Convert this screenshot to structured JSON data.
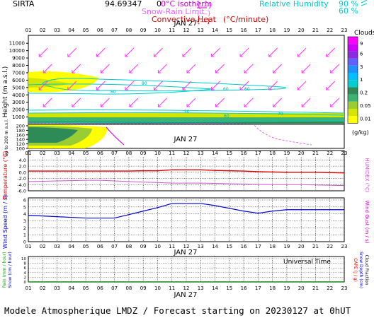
{
  "header": {
    "site": "SIRTA",
    "coords": "94.69347",
    "o_symbol": "0",
    "iso_label": "0°C isotherm",
    "snow_label": "Snow-Rain Limit",
    "conv_label": "Convective Heat",
    "conv_unit": "(°C/minute)",
    "rh_label": "Relative Humidity",
    "rh_90": "90 %",
    "rh_60": "60 %"
  },
  "date_label": "JAN 27",
  "hours": [
    "01",
    "02",
    "03",
    "04",
    "05",
    "06",
    "07",
    "08",
    "09",
    "10",
    "11",
    "12",
    "13",
    "14",
    "15",
    "16",
    "17",
    "18",
    "19",
    "20",
    "21",
    "22",
    "23"
  ],
  "cloud_panel": {
    "ylabel": "Height (m a.s.l.)",
    "ylabel2": "Up to 200 m a.s.l.",
    "yticks_upper": [
      "1000",
      "2000",
      "3000",
      "4000",
      "5000",
      "6000",
      "7000",
      "8000",
      "9000",
      "10000",
      "11000"
    ],
    "yticks_lower": [
      "100",
      "120",
      "140",
      "160",
      "180",
      "200"
    ],
    "contour_labels": [
      "60",
      "80",
      "60",
      "60",
      "50",
      "60",
      "70"
    ]
  },
  "cloud_legend": {
    "title": "Clouds",
    "levels": [
      "9",
      "6",
      "3",
      "1",
      "0.2",
      "0.05",
      "0.01"
    ],
    "unit": "(g/kg)",
    "colors": [
      "#ff00ff",
      "#cc00ff",
      "#8a2be2",
      "#6060ff",
      "#1e90ff",
      "#00bfff",
      "#00ced1",
      "#2e8b57",
      "#3cb371",
      "#9acd32",
      "#d4e600",
      "#ffff00"
    ]
  },
  "temp_panel": {
    "ylabel": "Temperature (°C)",
    "ylabel_right": "HUMIDEX (°C)",
    "yticks": [
      "4.0",
      "2.0",
      "0.0",
      "-2.0",
      "-4.0",
      "-6.0"
    ],
    "colors": {
      "temperature": "#dd0000",
      "humidex": "#cc55cc"
    }
  },
  "wind_panel": {
    "ylabel": "Wind Speed (m / s)",
    "ylabel_right": "Wind Gust (m / s)",
    "yticks": [
      "6",
      "5",
      "4",
      "3",
      "2",
      "1",
      "0"
    ],
    "color": "#0000cc"
  },
  "rain_panel": {
    "ylabel": "Rain (mm / hour)",
    "ylabel2": "Snow (cm / hour)",
    "ylabel_r1": "CAPE (J / g)",
    "ylabel_r2": "Snow Depth (cm)",
    "ylabel_r3": "Cloud Fraction",
    "yticks": [
      "10",
      "8",
      "6",
      "4",
      "2",
      "0"
    ],
    "xlabel": "Universal Time"
  },
  "footer": "Modele Atmospherique LMDZ / Forecast starting on 20230127 at 0hUT",
  "chart_data": [
    {
      "type": "heatmap",
      "title": "Clouds (g/kg) and Relative Humidity",
      "x": [
        "01",
        "02",
        "03",
        "04",
        "05",
        "06",
        "07",
        "08",
        "09",
        "10",
        "11",
        "12",
        "13",
        "14",
        "15",
        "16",
        "17",
        "18",
        "19",
        "20",
        "21",
        "22",
        "23"
      ],
      "ylabel": "Height (m a.s.l.)",
      "ylim": [
        0,
        11500
      ],
      "legend_levels": [
        9,
        6,
        3,
        1,
        0.2,
        0.05,
        0.01
      ]
    },
    {
      "type": "line",
      "ylabel": "Temperature (°C)",
      "ylim": [
        -6,
        5
      ],
      "x": [
        "01",
        "02",
        "03",
        "04",
        "05",
        "06",
        "07",
        "08",
        "09",
        "10",
        "11",
        "12",
        "13",
        "14",
        "15",
        "16",
        "17",
        "18",
        "19",
        "20",
        "21",
        "22",
        "23"
      ],
      "series": [
        {
          "name": "Temperature",
          "values": [
            0.4,
            0.4,
            0.4,
            0.4,
            0.4,
            0.4,
            0.4,
            0.4,
            0.5,
            0.5,
            0.8,
            0.8,
            0.8,
            0.6,
            0.5,
            0.4,
            0.2,
            0.1,
            0.0,
            0.0,
            0.0,
            -0.1,
            -0.2
          ]
        },
        {
          "name": "HUMIDEX",
          "values": [
            -3.0,
            -2.9,
            -2.8,
            -2.7,
            -2.6,
            -2.6,
            -2.8,
            -3.0,
            -3.2,
            -3.3,
            -3.5,
            -3.5,
            -3.5,
            -3.6,
            -3.7,
            -3.8,
            -3.9,
            -4.0,
            -4.0,
            -4.0,
            -4.1,
            -4.2,
            -4.3
          ]
        }
      ]
    },
    {
      "type": "line",
      "ylabel": "Wind Speed (m / s)",
      "ylim": [
        0,
        6
      ],
      "x": [
        "01",
        "02",
        "03",
        "04",
        "05",
        "06",
        "07",
        "08",
        "09",
        "10",
        "11",
        "12",
        "13",
        "14",
        "15",
        "16",
        "17",
        "18",
        "19",
        "20",
        "21",
        "22",
        "23"
      ],
      "series": [
        {
          "name": "Wind Speed",
          "values": [
            3.8,
            3.7,
            3.6,
            3.5,
            3.4,
            3.4,
            3.4,
            3.9,
            4.4,
            4.9,
            5.5,
            5.5,
            5.5,
            5.2,
            4.8,
            4.4,
            4.1,
            4.4,
            4.6,
            4.6,
            4.6,
            4.6,
            4.6
          ]
        }
      ]
    },
    {
      "type": "line",
      "ylabel": "Rain (mm / hour)",
      "ylim": [
        0,
        10
      ],
      "x": [
        "01",
        "02",
        "03",
        "04",
        "05",
        "06",
        "07",
        "08",
        "09",
        "10",
        "11",
        "12",
        "13",
        "14",
        "15",
        "16",
        "17",
        "18",
        "19",
        "20",
        "21",
        "22",
        "23"
      ],
      "series": [
        {
          "name": "Rain",
          "values": [
            0.1,
            0.1,
            0.1,
            0.1,
            0.1,
            0.1,
            0.1,
            0.1,
            0.1,
            0.1,
            0.1,
            0.1,
            0.1,
            0.1,
            0.1,
            0.1,
            0.1,
            0.1,
            0.1,
            0.1,
            0.1,
            0.1,
            0.1
          ]
        }
      ]
    }
  ]
}
